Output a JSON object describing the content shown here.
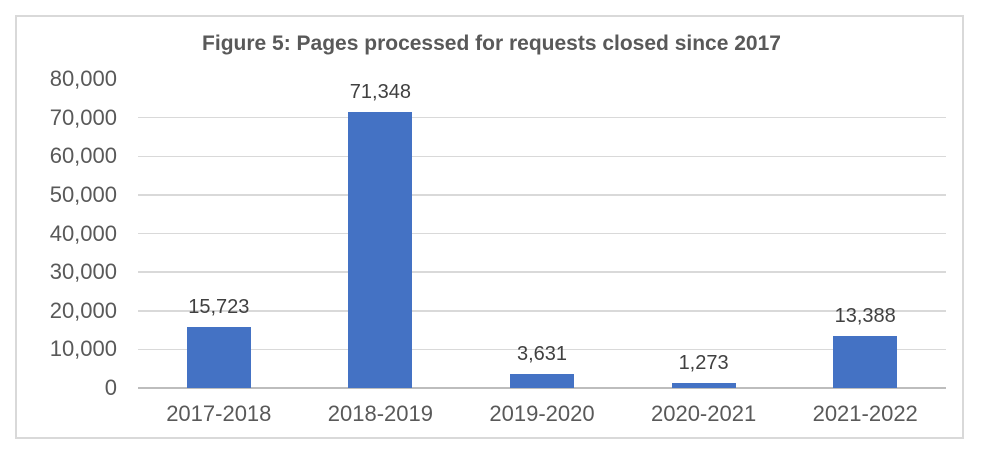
{
  "chart_data": {
    "type": "bar",
    "title": "Figure 5: Pages processed for requests closed since 2017",
    "categories": [
      "2017-2018",
      "2018-2019",
      "2019-2020",
      "2020-2021",
      "2021-2022"
    ],
    "values": [
      15723,
      71348,
      3631,
      1273,
      13388
    ],
    "value_labels": [
      "15,723",
      "71,348",
      "3,631",
      "1,273",
      "13,388"
    ],
    "xlabel": "",
    "ylabel": "",
    "ylim": [
      0,
      80000
    ],
    "y_tick_values": [
      0,
      10000,
      20000,
      30000,
      40000,
      50000,
      60000,
      70000,
      80000
    ],
    "y_tick_labels": [
      "0",
      "10,000",
      "20,000",
      "30,000",
      "40,000",
      "50,000",
      "60,000",
      "70,000",
      "80,000"
    ],
    "grid": "horizontal",
    "legend": "none",
    "colors": {
      "bar": "#4472C4",
      "gridline": "#D9D9D9",
      "axis_line": "#BDBDBD",
      "title_text": "#595959",
      "tick_text": "#595959",
      "value_label_text": "#404040",
      "frame_border": "#D9D9D9",
      "background": "#FFFFFF"
    }
  }
}
